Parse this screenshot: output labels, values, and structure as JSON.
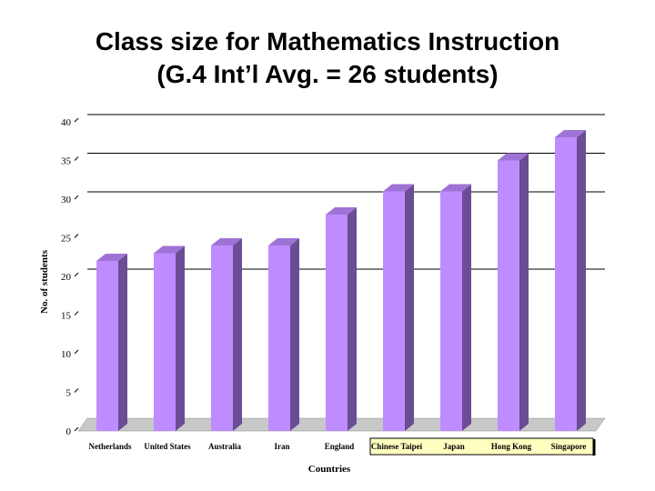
{
  "chart_data": {
    "type": "bar",
    "title": "Class size for Mathematics Instruction",
    "subtitle": "(G.4 Int’l Avg. = 26 students)",
    "xlabel": "Countries",
    "ylabel": "No. of students",
    "categories": [
      "Netherlands",
      "United States",
      "Australia",
      "Iran",
      "England",
      "Chinese Taipei",
      "Japan",
      "Hong Kong",
      "Singapore"
    ],
    "values": [
      22,
      23,
      24,
      24,
      28,
      31,
      31,
      35,
      38
    ],
    "highlighted_categories": [
      "Chinese Taipei",
      "Japan",
      "Hong Kong",
      "Singapore"
    ],
    "ylim": [
      0,
      40
    ],
    "yticks": [
      0,
      5,
      10,
      15,
      20,
      25,
      30,
      35,
      40
    ],
    "grid": true,
    "three_d": true,
    "bar_color": "#bf8cff",
    "bar_side_color": "#6a4d94",
    "bar_top_color": "#9f73d6",
    "floor_color": "#c8c8c8",
    "highlight_color": "#ffffc0"
  }
}
